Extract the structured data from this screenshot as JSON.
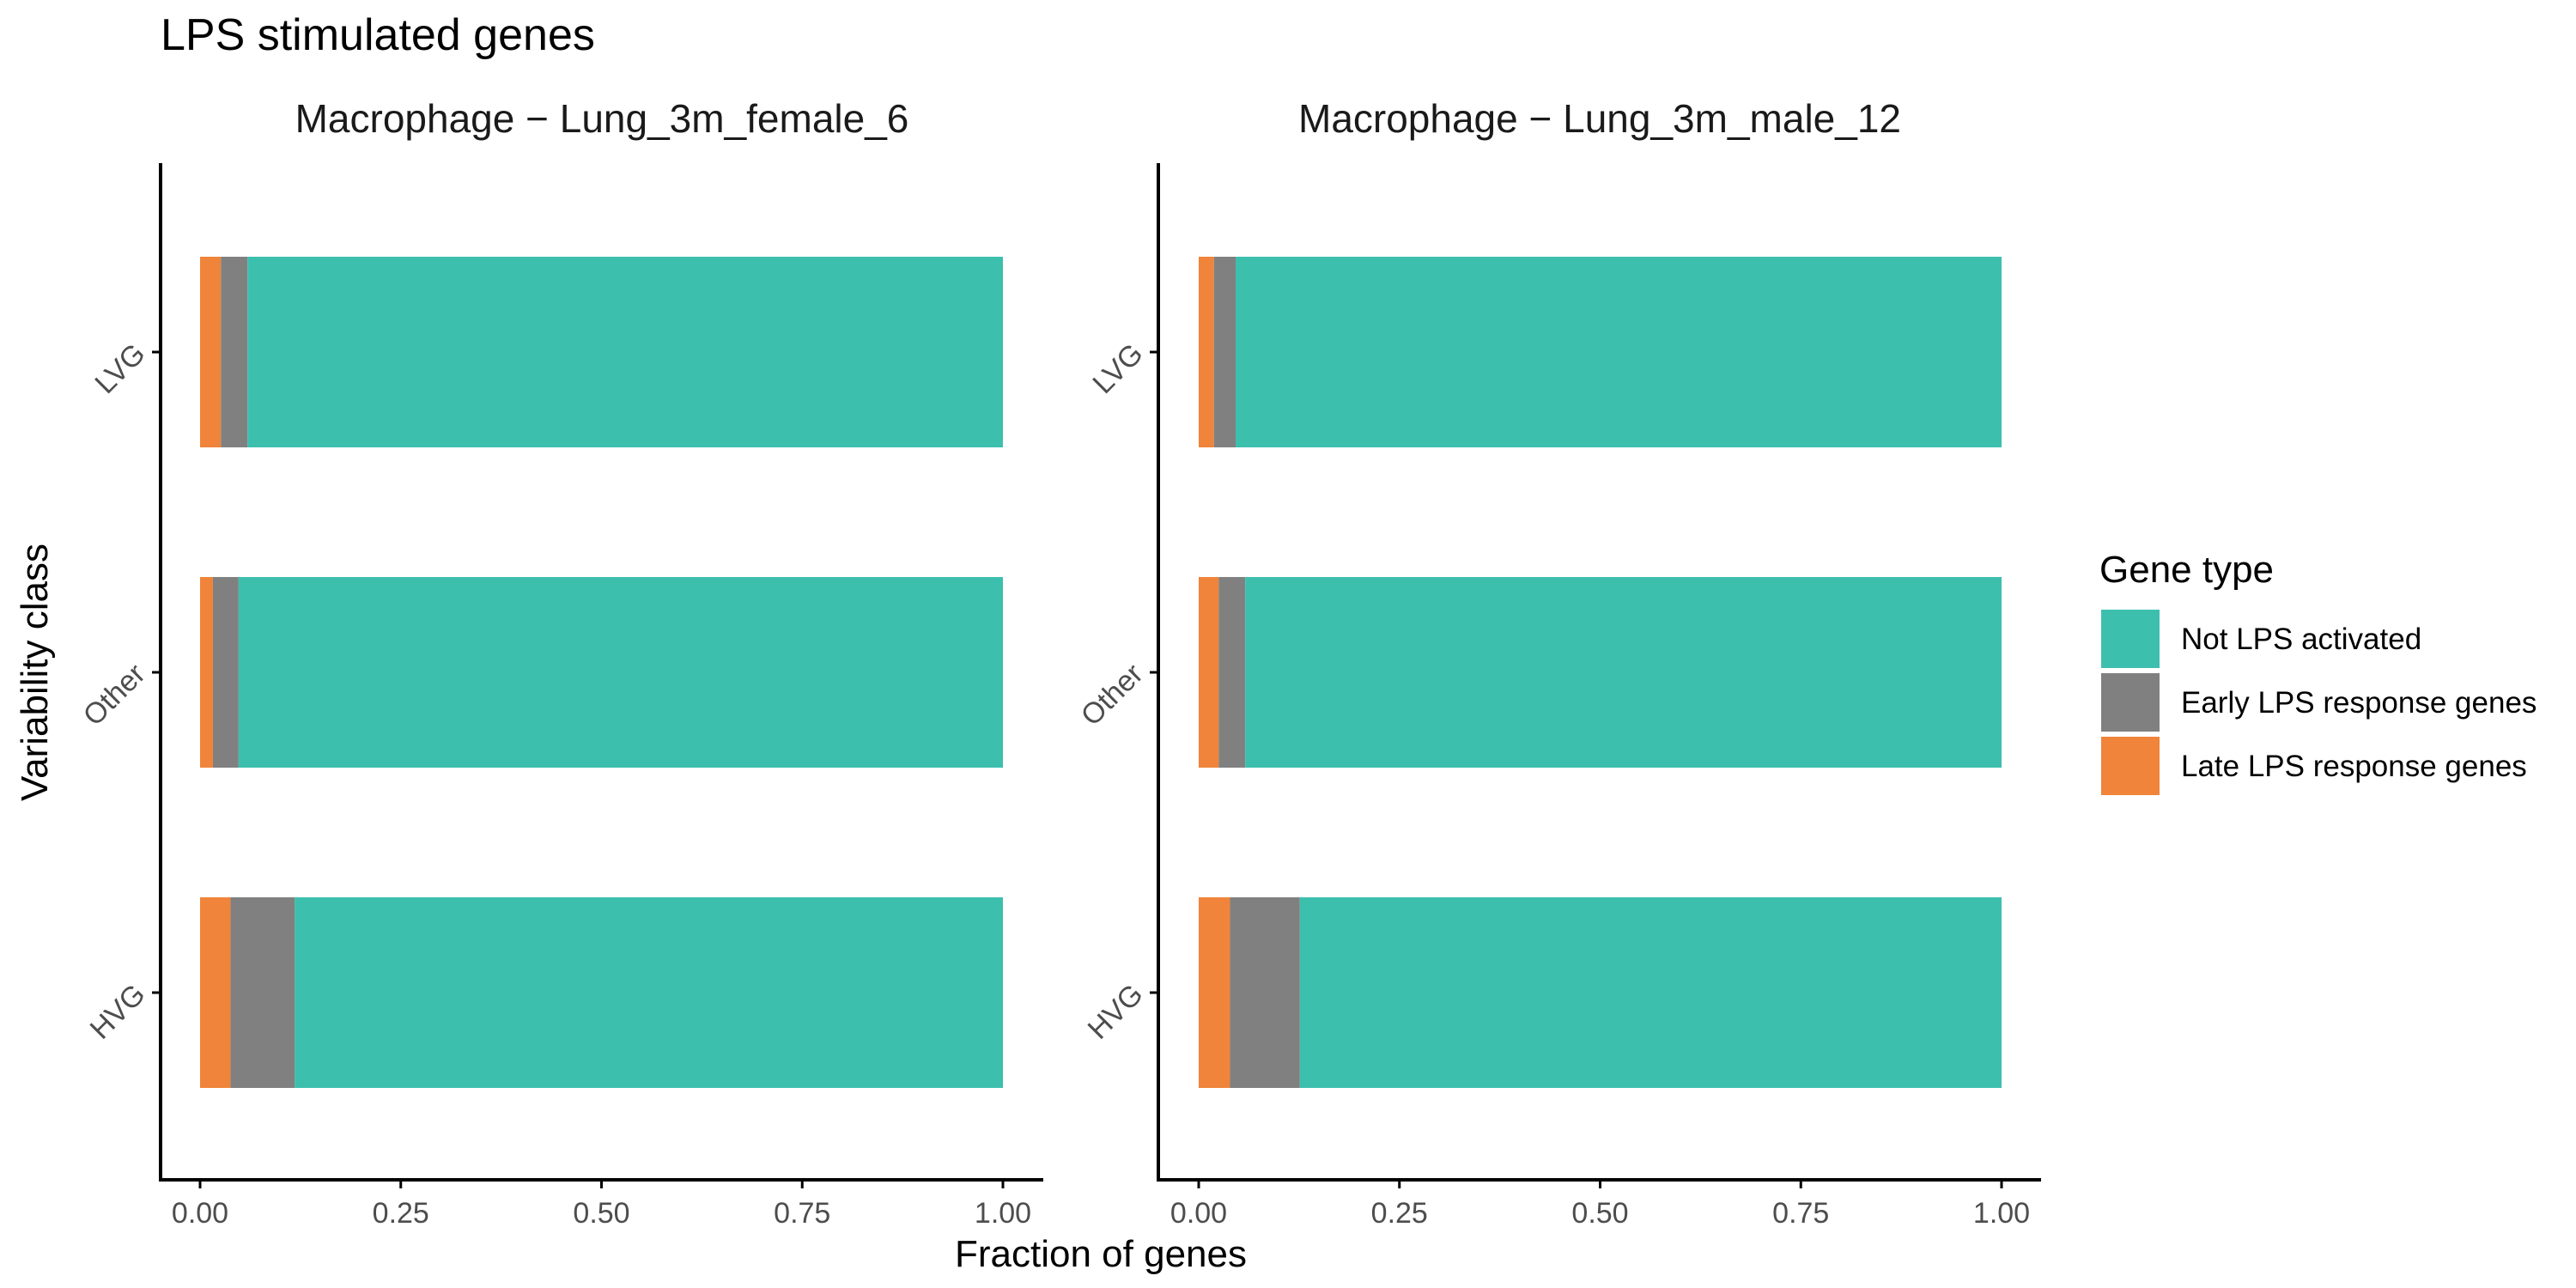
{
  "title": "LPS stimulated genes",
  "xlabel": "Fraction of genes",
  "ylabel": "Variability class",
  "colors": {
    "not_lps": "#3dbfae",
    "early": "#808080",
    "late": "#f0843a",
    "axis": "#000000",
    "tick_text": "#4d4d4d"
  },
  "legend": {
    "title": "Gene type",
    "position": "right",
    "items": [
      {
        "key": "not_lps",
        "label": "Not LPS activated"
      },
      {
        "key": "early",
        "label": "Early LPS response genes"
      },
      {
        "key": "late",
        "label": "Late LPS response genes"
      }
    ]
  },
  "chart_data": {
    "type": "bar",
    "orientation": "horizontal",
    "stacked": true,
    "categories": [
      "LVG",
      "Other",
      "HVG"
    ],
    "xlim": [
      0,
      1
    ],
    "xticks": [
      "0.00",
      "0.25",
      "0.50",
      "0.75",
      "1.00"
    ],
    "grid": false,
    "facets": [
      {
        "title": "Macrophage − Lung_3m_female_6",
        "series": [
          {
            "name": "Late LPS response genes",
            "key": "late",
            "values": [
              0.026,
              0.016,
              0.038
            ]
          },
          {
            "name": "Early LPS response genes",
            "key": "early",
            "values": [
              0.033,
              0.032,
              0.08
            ]
          },
          {
            "name": "Not LPS activated",
            "key": "not_lps",
            "values": [
              0.941,
              0.952,
              0.882
            ]
          }
        ]
      },
      {
        "title": "Macrophage − Lung_3m_male_12",
        "series": [
          {
            "name": "Late LPS response genes",
            "key": "late",
            "values": [
              0.019,
              0.025,
              0.039
            ]
          },
          {
            "name": "Early LPS response genes",
            "key": "early",
            "values": [
              0.027,
              0.033,
              0.087
            ]
          },
          {
            "name": "Not LPS activated",
            "key": "not_lps",
            "values": [
              0.954,
              0.942,
              0.874
            ]
          }
        ]
      }
    ]
  }
}
